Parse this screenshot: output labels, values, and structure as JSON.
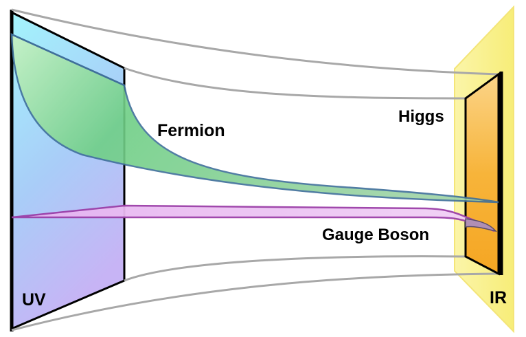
{
  "labels": {
    "fermion": "Fermion",
    "higgs": "Higgs",
    "gauge_boson": "Gauge Boson",
    "uv": "UV",
    "ir": "IR"
  },
  "colors": {
    "uv_brane_top": "#a6f2fb",
    "uv_brane_bottom": "#c9b8f6",
    "ir_brane_outer": "#f8f07e",
    "ir_brane_inner": "#f6a623",
    "fermion_fill": "#7fd58c",
    "fermion_edge": "#3f6f9a",
    "gauge_fill": "#e6b6ef",
    "gauge_edge": "#9b3fa8",
    "bulk_lines": "#a8a8a8"
  }
}
